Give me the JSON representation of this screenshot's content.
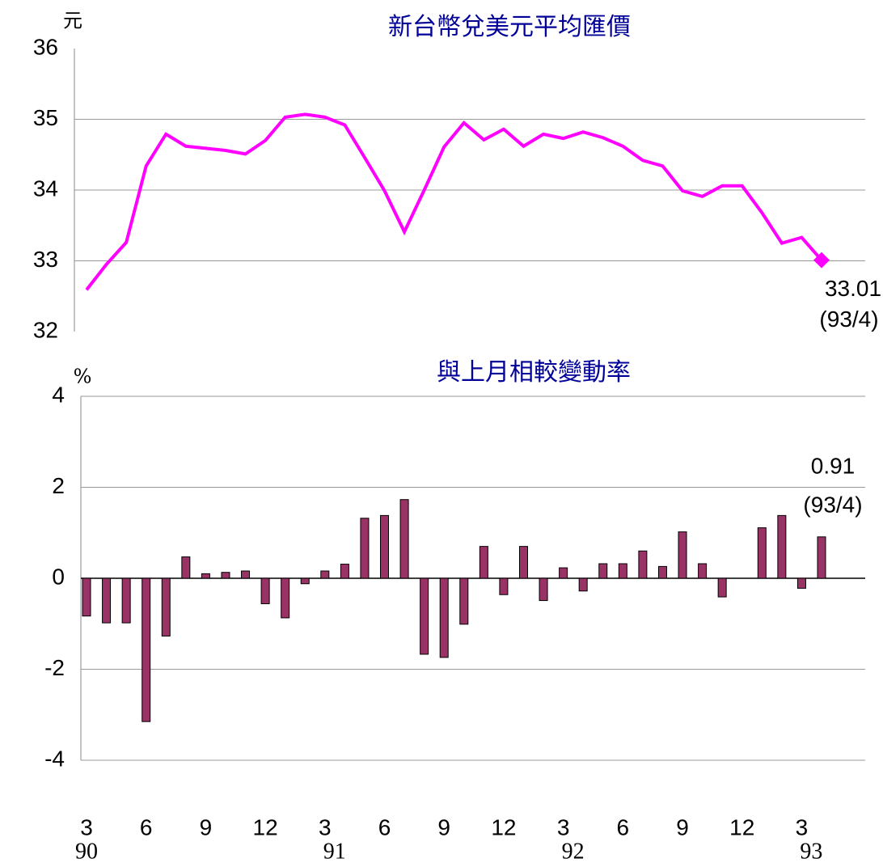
{
  "chart_data": [
    {
      "type": "line",
      "title": "新台幣兌美元平均匯價",
      "y_label": "元",
      "color": "#ff00ff",
      "values": [
        32.59,
        32.95,
        33.26,
        34.34,
        34.79,
        34.62,
        34.59,
        34.56,
        34.51,
        34.7,
        35.03,
        35.07,
        35.03,
        34.92,
        34.46,
        33.99,
        33.41,
        34.0,
        34.61,
        34.95,
        34.71,
        34.86,
        34.62,
        34.79,
        34.73,
        34.82,
        34.74,
        34.62,
        34.42,
        34.34,
        33.99,
        33.91,
        34.06,
        34.06,
        33.68,
        33.25,
        33.33,
        33.01
      ],
      "annotation": "(93/4)",
      "ylim": [
        32,
        36
      ],
      "yticks": [
        32,
        33,
        34,
        35,
        36
      ],
      "grid": true
    },
    {
      "type": "bar",
      "title": "與上月相較變動率",
      "y_label": "%",
      "color": "#993366",
      "categories": [
        "3",
        null,
        null,
        "6",
        null,
        null,
        "9",
        null,
        null,
        "12",
        null,
        null,
        "3",
        null,
        null,
        "6",
        null,
        null,
        "9",
        null,
        null,
        "12",
        null,
        null,
        "3",
        null,
        null,
        "6",
        null,
        null,
        "9",
        null,
        null,
        "12",
        null,
        null,
        "3",
        null
      ],
      "year_labels": [
        "90",
        null,
        null,
        null,
        null,
        null,
        null,
        null,
        null,
        null,
        null,
        null,
        "91",
        null,
        null,
        null,
        null,
        null,
        null,
        null,
        null,
        null,
        null,
        null,
        "92",
        null,
        null,
        null,
        null,
        null,
        null,
        null,
        null,
        null,
        null,
        null,
        "93",
        null
      ],
      "values": [
        -0.83,
        -0.98,
        -0.98,
        -3.15,
        -1.27,
        0.47,
        0.1,
        0.13,
        0.16,
        -0.56,
        -0.87,
        -0.12,
        0.16,
        0.31,
        1.32,
        1.38,
        1.73,
        -1.67,
        -1.74,
        -1.01,
        0.7,
        -0.36,
        0.7,
        -0.49,
        0.23,
        -0.28,
        0.32,
        0.32,
        0.6,
        0.26,
        1.02,
        0.32,
        -0.41,
        0,
        1.11,
        1.38,
        -0.22,
        0.91
      ],
      "annotation": "(93/4)",
      "ylim": [
        -4,
        4
      ],
      "yticks": [
        -4,
        -2,
        0,
        2,
        4
      ],
      "grid": true
    }
  ]
}
